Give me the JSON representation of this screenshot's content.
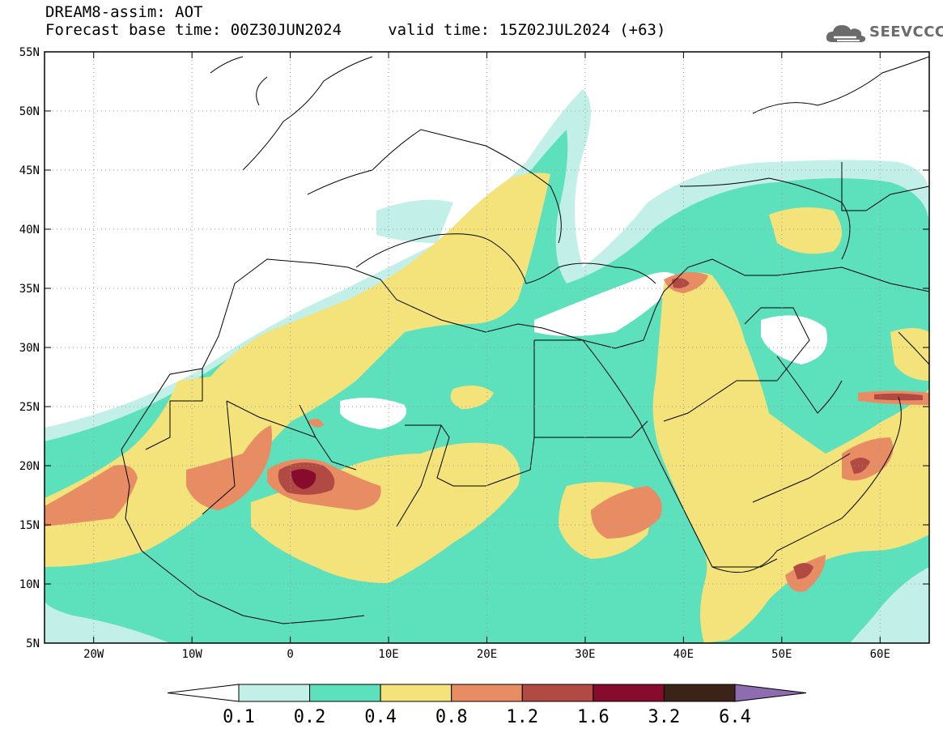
{
  "header": {
    "line1": "DREAM8-assim: AOT",
    "line2": "Forecast base time: 00Z30JUN2024     valid time: 15Z02JUL2024 (+63)"
  },
  "logo": {
    "text": "SEEVCCC",
    "icon": "cloud-icon",
    "color": "#6b6b6b"
  },
  "map": {
    "lon_range": [
      -25,
      65
    ],
    "lat_range": [
      5,
      55
    ],
    "lon_ticks": [
      {
        "value": -20,
        "label": "20W"
      },
      {
        "value": -10,
        "label": "10W"
      },
      {
        "value": 0,
        "label": "0"
      },
      {
        "value": 10,
        "label": "10E"
      },
      {
        "value": 20,
        "label": "20E"
      },
      {
        "value": 30,
        "label": "30E"
      },
      {
        "value": 40,
        "label": "40E"
      },
      {
        "value": 50,
        "label": "50E"
      },
      {
        "value": 60,
        "label": "60E"
      }
    ],
    "lat_ticks": [
      {
        "value": 55,
        "label": "55N"
      },
      {
        "value": 50,
        "label": "50N"
      },
      {
        "value": 45,
        "label": "45N"
      },
      {
        "value": 40,
        "label": "40N"
      },
      {
        "value": 35,
        "label": "35N"
      },
      {
        "value": 30,
        "label": "30N"
      },
      {
        "value": 25,
        "label": "25N"
      },
      {
        "value": 20,
        "label": "20N"
      },
      {
        "value": 15,
        "label": "15N"
      },
      {
        "value": 10,
        "label": "10N"
      },
      {
        "value": 5,
        "label": "5N"
      }
    ],
    "grid": "dotted"
  },
  "colorbar": {
    "labels": [
      "0.1",
      "0.2",
      "0.4",
      "0.8",
      "1.2",
      "1.6",
      "3.2",
      "6.4"
    ],
    "colors": [
      "#c2f0e8",
      "#5de0bc",
      "#f4e27a",
      "#e88c64",
      "#b14a42",
      "#870b2c",
      "#3b2417"
    ],
    "under_color": "#ffffff",
    "over_color": "#8e6cb0"
  }
}
